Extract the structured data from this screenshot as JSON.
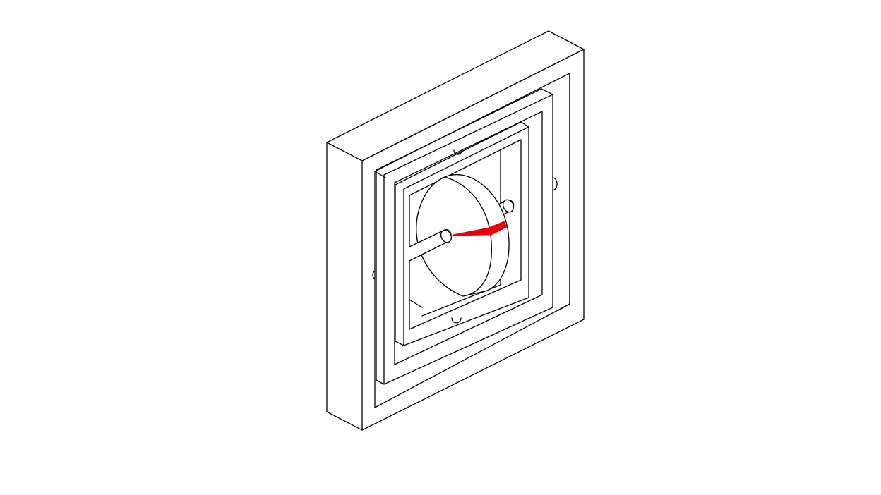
{
  "figure": {
    "subject": "gimbal-frame-isometric-line-drawing",
    "line_color": "#000000",
    "background_color": "#ffffff",
    "highlight_color": "#e8000b"
  }
}
